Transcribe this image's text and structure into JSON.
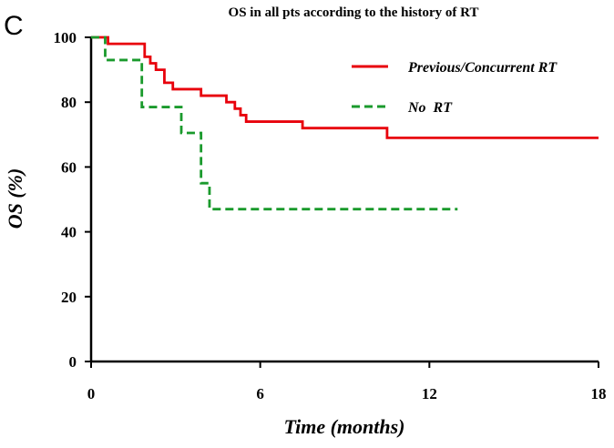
{
  "panel_label": "C",
  "chart_data": {
    "type": "line",
    "title": "OS in all pts according to the history of RT",
    "xlabel": "Time (months)",
    "ylabel": "OS (%)",
    "xlim": [
      0,
      18
    ],
    "ylim": [
      0,
      100
    ],
    "x_ticks": [
      0,
      6,
      12,
      18
    ],
    "y_ticks": [
      0,
      20,
      40,
      60,
      80,
      100
    ],
    "grid": false,
    "legend_position": "top-right",
    "step": true,
    "series": [
      {
        "name": "Previous/Concurrent RT",
        "color": "#e8000b",
        "line_style": "solid",
        "x": [
          0,
          0.6,
          1.9,
          2.1,
          2.3,
          2.6,
          2.9,
          3.3,
          3.9,
          4.8,
          5.1,
          5.3,
          5.5,
          5.8,
          7.5,
          10.5,
          18
        ],
        "y": [
          100,
          98,
          94,
          92,
          90,
          86,
          84,
          84,
          82,
          80,
          78,
          76,
          74,
          74,
          72,
          69,
          69
        ]
      },
      {
        "name": "No  RT",
        "color": "#1a9a2c",
        "line_style": "dashed",
        "x": [
          0,
          0.5,
          1.8,
          3.2,
          3.9,
          4.2,
          13.0
        ],
        "y": [
          100,
          93,
          78.5,
          70.5,
          55,
          47,
          47
        ]
      }
    ]
  }
}
